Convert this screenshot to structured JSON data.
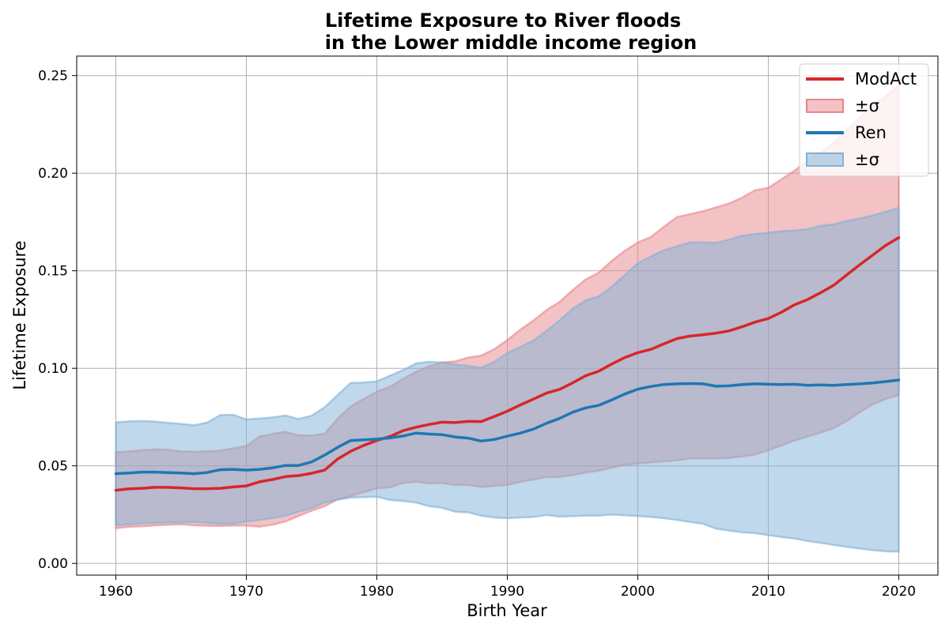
{
  "chart_data": {
    "type": "line",
    "title": "Lifetime Exposure to River floods",
    "subtitle": "in the Lower middle income region",
    "xlabel": "Birth Year",
    "ylabel": "Lifetime Exposure",
    "xlim": [
      1957,
      2023
    ],
    "ylim": [
      -0.006,
      0.26
    ],
    "xticks": [
      1960,
      1970,
      1980,
      1990,
      2000,
      2010,
      2020
    ],
    "xtick_labels": [
      "1960",
      "1970",
      "1980",
      "1990",
      "2000",
      "2010",
      "2020"
    ],
    "yticks": [
      0.0,
      0.05,
      0.1,
      0.15,
      0.2,
      0.25
    ],
    "ytick_labels": [
      "0.00",
      "0.05",
      "0.10",
      "0.15",
      "0.20",
      "0.25"
    ],
    "grid": true,
    "legend_position": "top-right",
    "x": [
      1960,
      1961,
      1962,
      1963,
      1964,
      1965,
      1966,
      1967,
      1968,
      1969,
      1970,
      1971,
      1972,
      1973,
      1974,
      1975,
      1976,
      1977,
      1978,
      1979,
      1980,
      1981,
      1982,
      1983,
      1984,
      1985,
      1986,
      1987,
      1988,
      1989,
      1990,
      1991,
      1992,
      1993,
      1994,
      1995,
      1996,
      1997,
      1998,
      1999,
      2000,
      2001,
      2002,
      2003,
      2004,
      2005,
      2006,
      2007,
      2008,
      2009,
      2010,
      2011,
      2012,
      2013,
      2014,
      2015,
      2016,
      2017,
      2018,
      2019,
      2020
    ],
    "series": [
      {
        "name": "ModAct",
        "band_label": "±σ",
        "line_color": "#d62728",
        "fill_color": "#e8858a",
        "mean": [
          0.0375,
          0.0382,
          0.0385,
          0.039,
          0.039,
          0.0387,
          0.0383,
          0.0383,
          0.0385,
          0.0392,
          0.0397,
          0.0418,
          0.043,
          0.0445,
          0.045,
          0.0462,
          0.0478,
          0.0535,
          0.0575,
          0.0605,
          0.063,
          0.065,
          0.068,
          0.0698,
          0.0712,
          0.0724,
          0.0722,
          0.0728,
          0.0727,
          0.0753,
          0.078,
          0.0812,
          0.0842,
          0.0873,
          0.0892,
          0.0925,
          0.0962,
          0.0985,
          0.1022,
          0.1055,
          0.108,
          0.1097,
          0.1125,
          0.1152,
          0.1165,
          0.1172,
          0.118,
          0.1192,
          0.1213,
          0.1237,
          0.1255,
          0.1287,
          0.1325,
          0.1352,
          0.1387,
          0.1425,
          0.1478,
          0.153,
          0.158,
          0.163,
          0.167
        ],
        "upper": [
          0.057,
          0.0575,
          0.058,
          0.0585,
          0.0582,
          0.0575,
          0.0572,
          0.0575,
          0.0578,
          0.059,
          0.0601,
          0.065,
          0.0663,
          0.0675,
          0.0657,
          0.0655,
          0.0665,
          0.0742,
          0.0805,
          0.0843,
          0.088,
          0.0905,
          0.0945,
          0.0982,
          0.101,
          0.103,
          0.1035,
          0.1055,
          0.1065,
          0.1098,
          0.1145,
          0.1198,
          0.1245,
          0.1298,
          0.134,
          0.14,
          0.1455,
          0.149,
          0.155,
          0.1602,
          0.1645,
          0.1673,
          0.1725,
          0.1775,
          0.179,
          0.1805,
          0.1825,
          0.1845,
          0.1875,
          0.1913,
          0.1925,
          0.1968,
          0.2012,
          0.2065,
          0.2105,
          0.2155,
          0.222,
          0.2285,
          0.2348,
          0.2395,
          0.2448
        ],
        "lower": [
          0.018,
          0.0188,
          0.019,
          0.0195,
          0.0198,
          0.02,
          0.0195,
          0.0193,
          0.0192,
          0.0194,
          0.0194,
          0.0188,
          0.0198,
          0.0215,
          0.0243,
          0.027,
          0.0293,
          0.0328,
          0.0345,
          0.0365,
          0.0385,
          0.039,
          0.0412,
          0.0418,
          0.041,
          0.0412,
          0.0402,
          0.0402,
          0.0392,
          0.0397,
          0.0402,
          0.0418,
          0.043,
          0.0443,
          0.0443,
          0.0452,
          0.0465,
          0.0475,
          0.049,
          0.0505,
          0.0512,
          0.0518,
          0.0523,
          0.0528,
          0.0538,
          0.0538,
          0.0537,
          0.054,
          0.0548,
          0.0558,
          0.058,
          0.0605,
          0.063,
          0.065,
          0.067,
          0.0693,
          0.073,
          0.0775,
          0.0815,
          0.0843,
          0.0863
        ]
      },
      {
        "name": "Ren",
        "band_label": "±σ",
        "line_color": "#1f77b4",
        "fill_color": "#7fb1d8",
        "mean": [
          0.046,
          0.0463,
          0.0468,
          0.0468,
          0.0465,
          0.0463,
          0.046,
          0.0466,
          0.048,
          0.0482,
          0.0478,
          0.0482,
          0.049,
          0.0502,
          0.0502,
          0.052,
          0.0555,
          0.0595,
          0.063,
          0.0633,
          0.0637,
          0.0643,
          0.0653,
          0.0668,
          0.0663,
          0.066,
          0.0648,
          0.0642,
          0.0627,
          0.0635,
          0.0652,
          0.0668,
          0.0688,
          0.0718,
          0.0743,
          0.0775,
          0.0797,
          0.081,
          0.0838,
          0.0868,
          0.0893,
          0.0907,
          0.0917,
          0.092,
          0.0922,
          0.092,
          0.0908,
          0.091,
          0.0917,
          0.092,
          0.0918,
          0.0917,
          0.0918,
          0.0913,
          0.0915,
          0.0913,
          0.0917,
          0.092,
          0.0925,
          0.0932,
          0.094
        ],
        "upper": [
          0.0723,
          0.0728,
          0.073,
          0.0727,
          0.072,
          0.0715,
          0.0708,
          0.0722,
          0.076,
          0.0762,
          0.0738,
          0.0742,
          0.0748,
          0.0758,
          0.074,
          0.0757,
          0.08,
          0.0863,
          0.0925,
          0.0927,
          0.0933,
          0.0962,
          0.099,
          0.1025,
          0.1033,
          0.103,
          0.102,
          0.1012,
          0.1003,
          0.1033,
          0.1078,
          0.111,
          0.1142,
          0.1192,
          0.1245,
          0.1305,
          0.1348,
          0.1368,
          0.1418,
          0.1478,
          0.1538,
          0.1573,
          0.1605,
          0.1625,
          0.1645,
          0.1645,
          0.1643,
          0.166,
          0.168,
          0.1688,
          0.1695,
          0.1702,
          0.1707,
          0.1712,
          0.173,
          0.1738,
          0.1755,
          0.1768,
          0.1783,
          0.1802,
          0.1822
        ],
        "lower": [
          0.0195,
          0.02,
          0.0205,
          0.0208,
          0.021,
          0.021,
          0.0212,
          0.0208,
          0.0203,
          0.0203,
          0.0215,
          0.0222,
          0.0232,
          0.0245,
          0.0265,
          0.0283,
          0.0312,
          0.0327,
          0.0337,
          0.034,
          0.0342,
          0.0325,
          0.032,
          0.0312,
          0.0293,
          0.0285,
          0.0265,
          0.0262,
          0.0245,
          0.0235,
          0.0232,
          0.0235,
          0.0238,
          0.0248,
          0.024,
          0.0242,
          0.0245,
          0.0245,
          0.025,
          0.0247,
          0.0243,
          0.0238,
          0.0232,
          0.0223,
          0.0212,
          0.0203,
          0.0178,
          0.0168,
          0.016,
          0.0155,
          0.0145,
          0.0135,
          0.0128,
          0.0115,
          0.0105,
          0.0095,
          0.0085,
          0.0077,
          0.0068,
          0.0062,
          0.006
        ]
      }
    ]
  }
}
